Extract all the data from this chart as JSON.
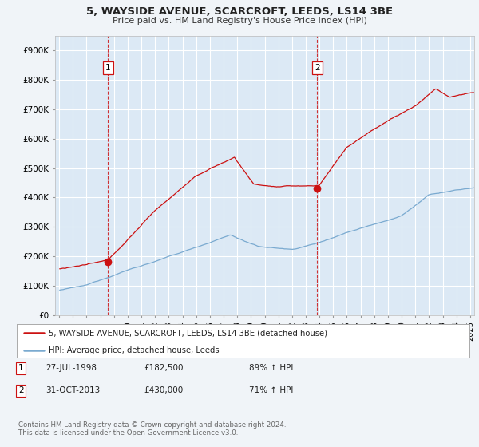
{
  "title": "5, WAYSIDE AVENUE, SCARCROFT, LEEDS, LS14 3BE",
  "subtitle": "Price paid vs. HM Land Registry's House Price Index (HPI)",
  "background_color": "#f0f4f8",
  "plot_bg_color": "#dce9f5",
  "grid_color": "#ffffff",
  "property_color": "#cc1111",
  "hpi_color": "#7aaad0",
  "sale1_x": 1998.56,
  "sale1_price": 182500,
  "sale2_x": 2013.83,
  "sale2_price": 430000,
  "legend1": "5, WAYSIDE AVENUE, SCARCROFT, LEEDS, LS14 3BE (detached house)",
  "legend2": "HPI: Average price, detached house, Leeds",
  "table_row1": [
    "1",
    "27-JUL-1998",
    "£182,500",
    "89% ↑ HPI"
  ],
  "table_row2": [
    "2",
    "31-OCT-2013",
    "£430,000",
    "71% ↑ HPI"
  ],
  "footer": "Contains HM Land Registry data © Crown copyright and database right 2024.\nThis data is licensed under the Open Government Licence v3.0.",
  "ylim": [
    0,
    950000
  ],
  "yticks": [
    0,
    100000,
    200000,
    300000,
    400000,
    500000,
    600000,
    700000,
    800000,
    900000
  ],
  "xlim_left": 1994.7,
  "xlim_right": 2025.3
}
